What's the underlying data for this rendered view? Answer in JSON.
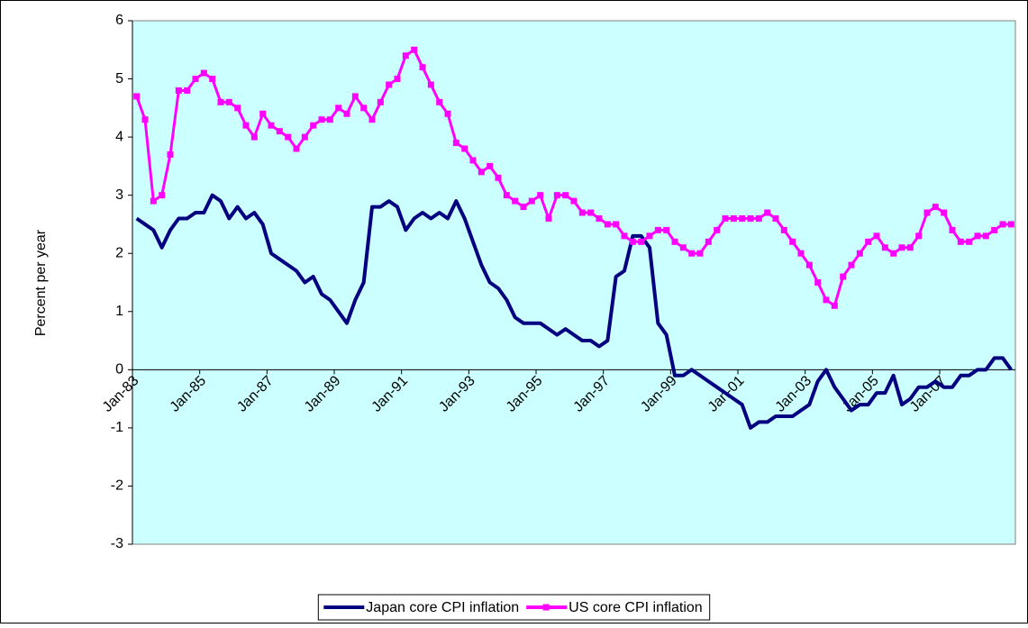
{
  "chart_data": {
    "type": "line",
    "y_label": "Percent per year",
    "ylim": [
      -3,
      6
    ],
    "yticks": [
      -3,
      -2,
      -1,
      0,
      1,
      2,
      3,
      4,
      5,
      6
    ],
    "legend": "bottom",
    "background": "#ccffff",
    "categories": [
      "Jan-83",
      null,
      null,
      null,
      null,
      null,
      null,
      null,
      "Jan-85",
      null,
      null,
      null,
      null,
      null,
      null,
      null,
      "Jan-87",
      null,
      null,
      null,
      null,
      null,
      null,
      null,
      "Jan-89",
      null,
      null,
      null,
      null,
      null,
      null,
      null,
      "Jan-91",
      null,
      null,
      null,
      null,
      null,
      null,
      null,
      "Jan-93",
      null,
      null,
      null,
      null,
      null,
      null,
      null,
      "Jan-95",
      null,
      null,
      null,
      null,
      null,
      null,
      null,
      "Jan-97",
      null,
      null,
      null,
      null,
      null,
      null,
      null,
      "Jan-99",
      null,
      null,
      null,
      null,
      null,
      null,
      null,
      "Jan-01",
      null,
      null,
      null,
      null,
      null,
      null,
      null,
      "Jan-03",
      null,
      null,
      null,
      null,
      null,
      null,
      null,
      "Jan-05",
      null,
      null,
      null,
      null,
      null,
      null,
      null,
      "Jan-07",
      null,
      null,
      null,
      null,
      null,
      null,
      null,
      null
    ],
    "series": [
      {
        "name": "Japan core CPI inflation",
        "color": "#000080",
        "marker": "none",
        "values": [
          2.6,
          2.5,
          2.4,
          2.1,
          2.4,
          2.6,
          2.6,
          2.7,
          2.7,
          3.0,
          2.9,
          2.6,
          2.8,
          2.6,
          2.7,
          2.5,
          2.0,
          1.9,
          1.8,
          1.7,
          1.5,
          1.6,
          1.3,
          1.2,
          1.0,
          0.8,
          1.2,
          1.5,
          2.8,
          2.8,
          2.9,
          2.8,
          2.4,
          2.6,
          2.7,
          2.6,
          2.7,
          2.6,
          2.9,
          2.6,
          2.2,
          1.8,
          1.5,
          1.4,
          1.2,
          0.9,
          0.8,
          0.8,
          0.8,
          0.7,
          0.6,
          0.7,
          0.6,
          0.5,
          0.5,
          0.4,
          0.5,
          1.6,
          1.7,
          2.3,
          2.3,
          2.1,
          0.8,
          0.6,
          -0.1,
          -0.1,
          0.0,
          -0.1,
          -0.2,
          -0.3,
          -0.4,
          -0.5,
          -0.6,
          -1.0,
          -0.9,
          -0.9,
          -0.8,
          -0.8,
          -0.8,
          -0.7,
          -0.6,
          -0.2,
          0.0,
          -0.3,
          -0.5,
          -0.7,
          -0.6,
          -0.6,
          -0.4,
          -0.4,
          -0.1,
          -0.6,
          -0.5,
          -0.3,
          -0.3,
          -0.2,
          -0.3,
          -0.3,
          -0.1,
          -0.1,
          0.0,
          0.0,
          0.2,
          0.2,
          0.0
        ]
      },
      {
        "name": "US core CPI inflation",
        "color": "#ff00ff",
        "marker": "square",
        "values": [
          4.7,
          4.3,
          2.9,
          3.0,
          3.7,
          4.8,
          4.8,
          5.0,
          5.1,
          5.0,
          4.6,
          4.6,
          4.5,
          4.2,
          4.0,
          4.4,
          4.2,
          4.1,
          4.0,
          3.8,
          4.0,
          4.2,
          4.3,
          4.3,
          4.5,
          4.4,
          4.7,
          4.5,
          4.3,
          4.6,
          4.9,
          5.0,
          5.4,
          5.5,
          5.2,
          4.9,
          4.6,
          4.4,
          3.9,
          3.8,
          3.6,
          3.4,
          3.5,
          3.3,
          3.0,
          2.9,
          2.8,
          2.9,
          3.0,
          2.6,
          3.0,
          3.0,
          2.9,
          2.7,
          2.7,
          2.6,
          2.5,
          2.5,
          2.3,
          2.2,
          2.2,
          2.3,
          2.4,
          2.4,
          2.2,
          2.1,
          2.0,
          2.0,
          2.2,
          2.4,
          2.6,
          2.6,
          2.6,
          2.6,
          2.6,
          2.7,
          2.6,
          2.4,
          2.2,
          2.0,
          1.8,
          1.5,
          1.2,
          1.1,
          1.6,
          1.8,
          2.0,
          2.2,
          2.3,
          2.1,
          2.0,
          2.1,
          2.1,
          2.3,
          2.7,
          2.8,
          2.7,
          2.4,
          2.2,
          2.2,
          2.3,
          2.3,
          2.4,
          2.5,
          2.5
        ]
      }
    ]
  }
}
